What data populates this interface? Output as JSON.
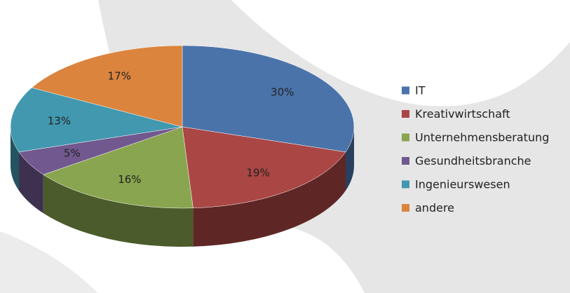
{
  "chart_data": {
    "type": "pie",
    "categories": [
      "IT",
      "Kreativwirtschaft",
      "Unternehmensberatung",
      "Gesundheitsbranche",
      "Ingenieurswesen",
      "andere"
    ],
    "values": [
      30,
      19,
      16,
      5,
      13,
      17
    ],
    "value_labels": [
      "30%",
      "19%",
      "16%",
      "5%",
      "13%",
      "17%"
    ],
    "colors": [
      "#4a73a9",
      "#aa4644",
      "#89a54f",
      "#71598f",
      "#4198af",
      "#db843e"
    ],
    "legend": "right"
  }
}
